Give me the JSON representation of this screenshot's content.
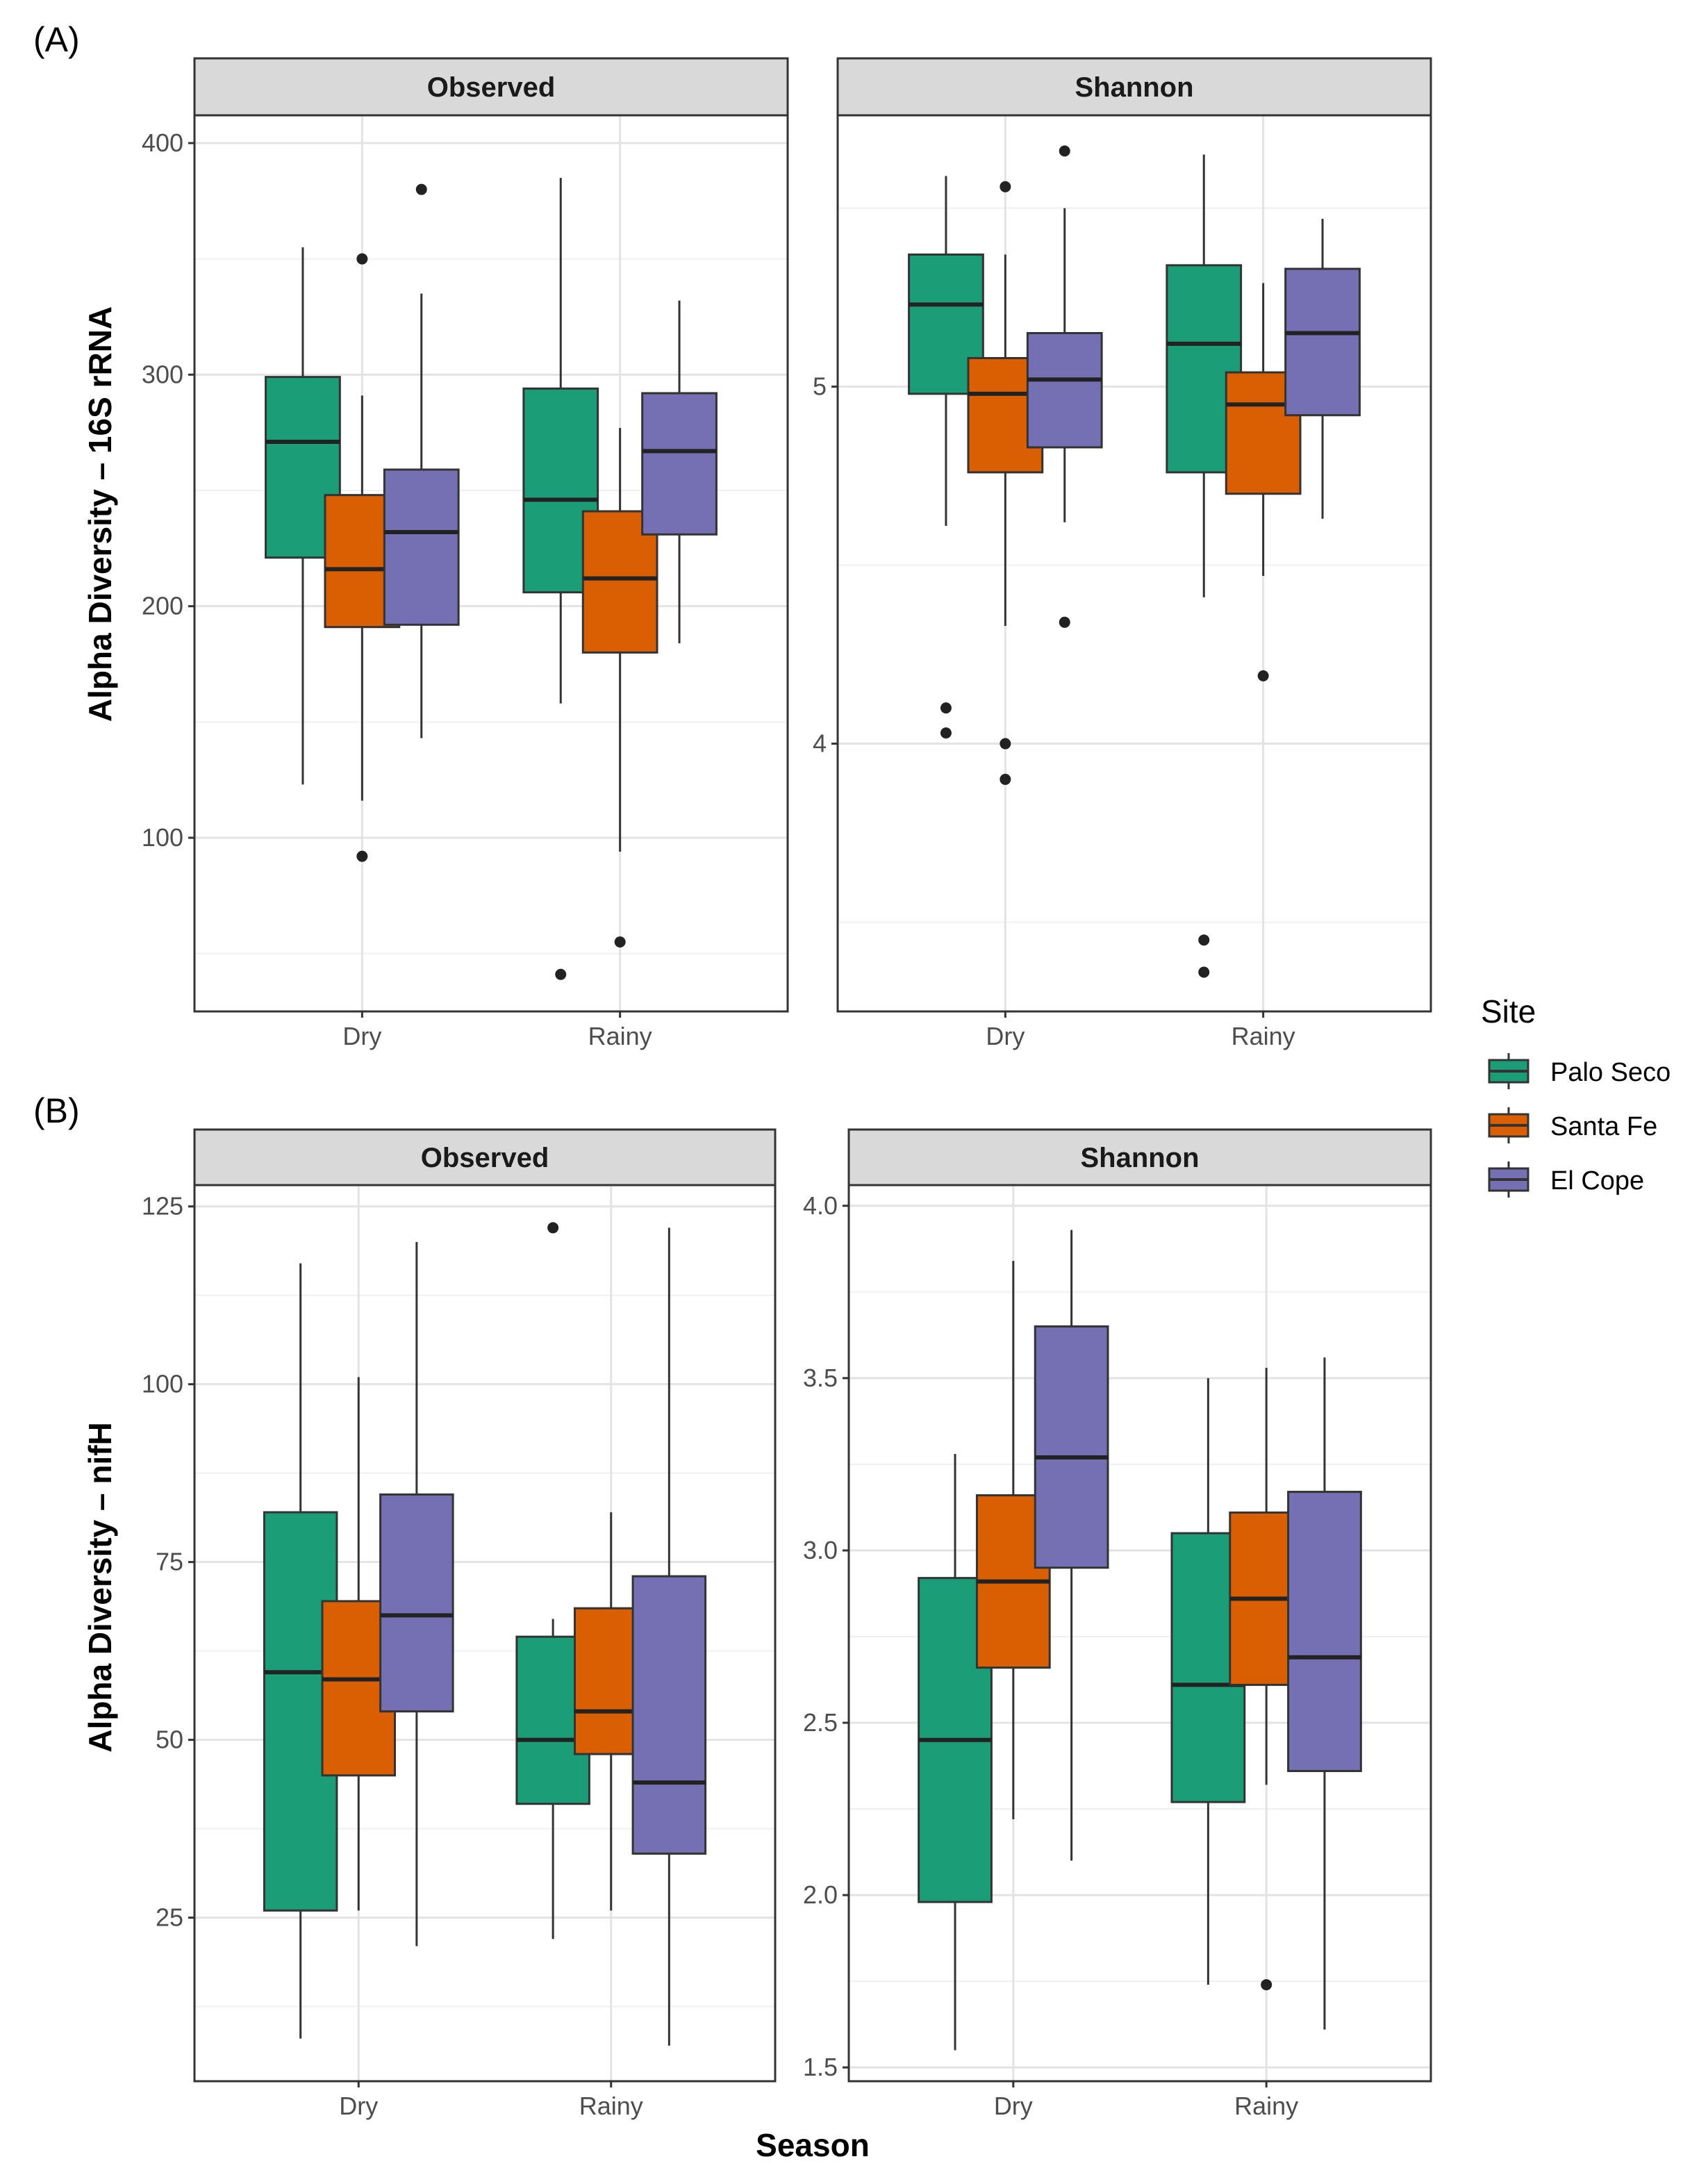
{
  "figure": {
    "panel_tags": [
      "(A)",
      "(B)"
    ],
    "x_title": "Season",
    "legend": {
      "title": "Site",
      "items": [
        {
          "label": "Palo Seco",
          "color": "#1b9e77"
        },
        {
          "label": "Santa Fe",
          "color": "#d95f02"
        },
        {
          "label": "El Cope",
          "color": "#7570b3"
        }
      ]
    },
    "row_labels": [
      "Alpha Diversity – 16S rRNA",
      "Alpha Diversity – nifH"
    ]
  },
  "chart_data": [
    {
      "type": "box",
      "row": "A",
      "facet": "Observed",
      "ylabel": "Alpha Diversity – 16S rRNA",
      "categories": [
        "Dry",
        "Rainy"
      ],
      "ylim": [
        25,
        412
      ],
      "yticks": [
        100,
        200,
        300,
        400
      ],
      "ytick_labels": [
        "100",
        "200",
        "300",
        "400"
      ],
      "series": [
        {
          "name": "Palo Seco",
          "boxes": [
            {
              "season": "Dry",
              "lower": 123,
              "q1": 221,
              "median": 271,
              "q3": 299,
              "upper": 355,
              "outliers": []
            },
            {
              "season": "Rainy",
              "lower": 158,
              "q1": 206,
              "median": 246,
              "q3": 294,
              "upper": 385,
              "outliers": [
                41
              ]
            }
          ]
        },
        {
          "name": "Santa Fe",
          "boxes": [
            {
              "season": "Dry",
              "lower": 116,
              "q1": 191,
              "median": 216,
              "q3": 248,
              "upper": 291,
              "outliers": [
                350,
                92
              ]
            },
            {
              "season": "Rainy",
              "lower": 94,
              "q1": 180,
              "median": 212,
              "q3": 241,
              "upper": 277,
              "outliers": [
                55
              ]
            }
          ]
        },
        {
          "name": "El Cope",
          "boxes": [
            {
              "season": "Dry",
              "lower": 143,
              "q1": 192,
              "median": 232,
              "q3": 259,
              "upper": 335,
              "outliers": [
                380
              ]
            },
            {
              "season": "Rainy",
              "lower": 184,
              "q1": 231,
              "median": 267,
              "q3": 292,
              "upper": 332,
              "outliers": []
            }
          ]
        }
      ]
    },
    {
      "type": "box",
      "row": "A",
      "facet": "Shannon",
      "ylabel": "Alpha Diversity – 16S rRNA",
      "categories": [
        "Dry",
        "Rainy"
      ],
      "ylim": [
        3.25,
        5.76
      ],
      "yticks": [
        4,
        5
      ],
      "ytick_labels": [
        "4",
        "5"
      ],
      "series": [
        {
          "name": "Palo Seco",
          "boxes": [
            {
              "season": "Dry",
              "lower": 4.61,
              "q1": 4.98,
              "median": 5.23,
              "q3": 5.37,
              "upper": 5.59,
              "outliers": [
                4.1,
                4.03
              ]
            },
            {
              "season": "Rainy",
              "lower": 4.41,
              "q1": 4.76,
              "median": 5.12,
              "q3": 5.34,
              "upper": 5.65,
              "outliers": [
                3.45,
                3.36
              ]
            }
          ]
        },
        {
          "name": "Santa Fe",
          "boxes": [
            {
              "season": "Dry",
              "lower": 4.33,
              "q1": 4.76,
              "median": 4.98,
              "q3": 5.08,
              "upper": 5.37,
              "outliers": [
                5.56,
                4.0,
                3.9
              ]
            },
            {
              "season": "Rainy",
              "lower": 4.47,
              "q1": 4.7,
              "median": 4.95,
              "q3": 5.04,
              "upper": 5.29,
              "outliers": [
                4.19
              ]
            }
          ]
        },
        {
          "name": "El Cope",
          "boxes": [
            {
              "season": "Dry",
              "lower": 4.62,
              "q1": 4.83,
              "median": 5.02,
              "q3": 5.15,
              "upper": 5.5,
              "outliers": [
                5.66,
                4.34
              ]
            },
            {
              "season": "Rainy",
              "lower": 4.63,
              "q1": 4.92,
              "median": 5.15,
              "q3": 5.33,
              "upper": 5.47,
              "outliers": []
            }
          ]
        }
      ]
    },
    {
      "type": "box",
      "row": "B",
      "facet": "Observed",
      "ylabel": "Alpha Diversity – nifH",
      "categories": [
        "Dry",
        "Rainy"
      ],
      "ylim": [
        2,
        128
      ],
      "yticks": [
        25,
        50,
        75,
        100,
        125
      ],
      "ytick_labels": [
        "25",
        "50",
        "75",
        "100",
        "125"
      ],
      "series": [
        {
          "name": "Palo Seco",
          "boxes": [
            {
              "season": "Dry",
              "lower": 8,
              "q1": 26,
              "median": 59.5,
              "q3": 82,
              "upper": 117,
              "outliers": []
            },
            {
              "season": "Rainy",
              "lower": 22,
              "q1": 41,
              "median": 50,
              "q3": 64.5,
              "upper": 67,
              "outliers": [
                122
              ]
            }
          ]
        },
        {
          "name": "Santa Fe",
          "boxes": [
            {
              "season": "Dry",
              "lower": 26,
              "q1": 45,
              "median": 58.5,
              "q3": 69.5,
              "upper": 101,
              "outliers": []
            },
            {
              "season": "Rainy",
              "lower": 26,
              "q1": 48,
              "median": 54,
              "q3": 68.5,
              "upper": 82,
              "outliers": []
            }
          ]
        },
        {
          "name": "El Cope",
          "boxes": [
            {
              "season": "Dry",
              "lower": 21,
              "q1": 54,
              "median": 67.5,
              "q3": 84.5,
              "upper": 120,
              "outliers": []
            },
            {
              "season": "Rainy",
              "lower": 7,
              "q1": 34,
              "median": 44,
              "q3": 73,
              "upper": 122,
              "outliers": []
            }
          ]
        }
      ]
    },
    {
      "type": "box",
      "row": "B",
      "facet": "Shannon",
      "ylabel": "Alpha Diversity – nifH",
      "categories": [
        "Dry",
        "Rainy"
      ],
      "ylim": [
        1.46,
        4.06
      ],
      "yticks": [
        1.5,
        2.0,
        2.5,
        3.0,
        3.5,
        4.0
      ],
      "ytick_labels": [
        "1.5",
        "2.0",
        "2.5",
        "3.0",
        "3.5",
        "4.0"
      ],
      "series": [
        {
          "name": "Palo Seco",
          "boxes": [
            {
              "season": "Dry",
              "lower": 1.55,
              "q1": 1.98,
              "median": 2.45,
              "q3": 2.92,
              "upper": 3.28,
              "outliers": []
            },
            {
              "season": "Rainy",
              "lower": 1.74,
              "q1": 2.27,
              "median": 2.61,
              "q3": 3.05,
              "upper": 3.5,
              "outliers": []
            }
          ]
        },
        {
          "name": "Santa Fe",
          "boxes": [
            {
              "season": "Dry",
              "lower": 2.22,
              "q1": 2.66,
              "median": 2.91,
              "q3": 3.16,
              "upper": 3.84,
              "outliers": []
            },
            {
              "season": "Rainy",
              "lower": 2.32,
              "q1": 2.61,
              "median": 2.86,
              "q3": 3.11,
              "upper": 3.53,
              "outliers": [
                1.74
              ]
            }
          ]
        },
        {
          "name": "El Cope",
          "boxes": [
            {
              "season": "Dry",
              "lower": 2.1,
              "q1": 2.95,
              "median": 3.27,
              "q3": 3.65,
              "upper": 3.93,
              "outliers": []
            },
            {
              "season": "Rainy",
              "lower": 1.61,
              "q1": 2.36,
              "median": 2.69,
              "q3": 3.17,
              "upper": 3.56,
              "outliers": []
            }
          ]
        }
      ]
    }
  ]
}
